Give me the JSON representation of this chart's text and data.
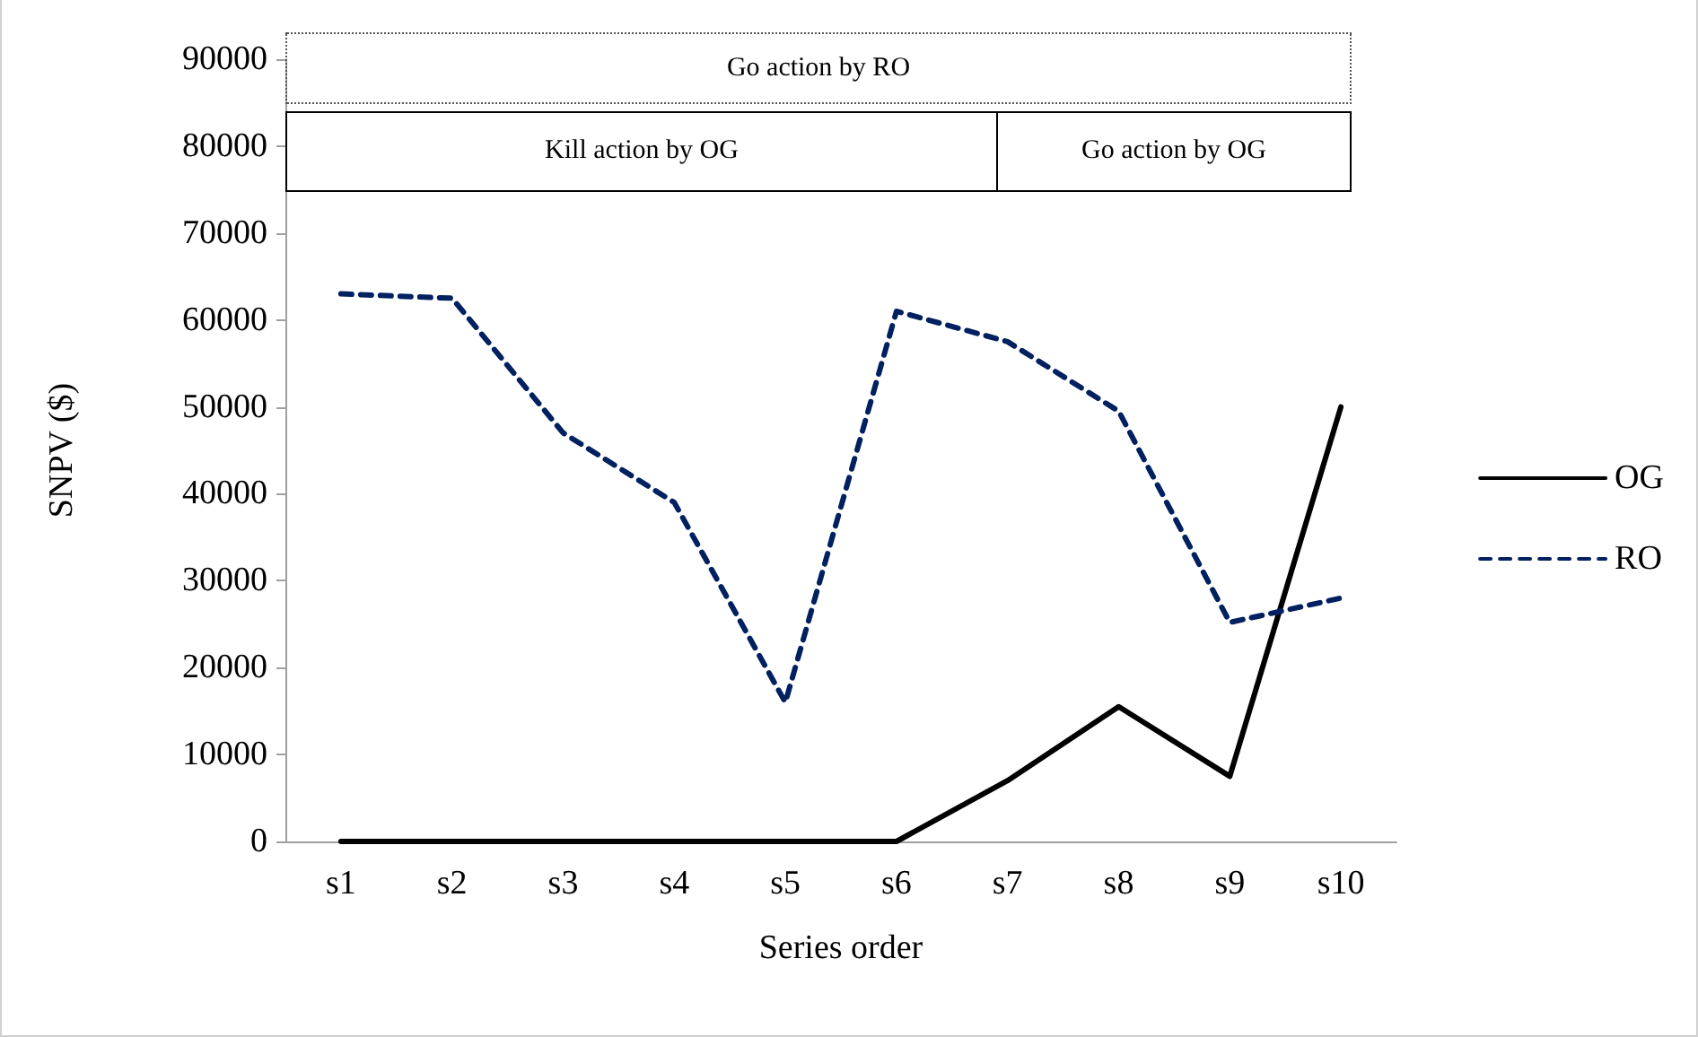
{
  "chart_data": {
    "type": "line",
    "xlabel": "Series order",
    "ylabel": "SNPV ($)",
    "categories": [
      "s1",
      "s2",
      "s3",
      "s4",
      "s5",
      "s6",
      "s7",
      "s8",
      "s9",
      "s10"
    ],
    "series": [
      {
        "name": "OG",
        "color": "#000000",
        "line_style": "solid",
        "values": [
          0,
          0,
          0,
          0,
          0,
          0,
          7000,
          15500,
          7500,
          50000
        ]
      },
      {
        "name": "RO",
        "color": "#002060",
        "line_style": "dashed",
        "values": [
          63000,
          62500,
          47000,
          39000,
          16000,
          61000,
          57500,
          49500,
          25200,
          28000
        ]
      }
    ],
    "ylim": [
      0,
      90000
    ],
    "yticks": [
      0,
      10000,
      20000,
      30000,
      40000,
      50000,
      60000,
      70000,
      80000,
      90000
    ],
    "grid": false,
    "legend": "right",
    "marker": "none",
    "annotations": [
      "Go action by RO",
      "Kill action by OG",
      "Go action by OG"
    ]
  }
}
